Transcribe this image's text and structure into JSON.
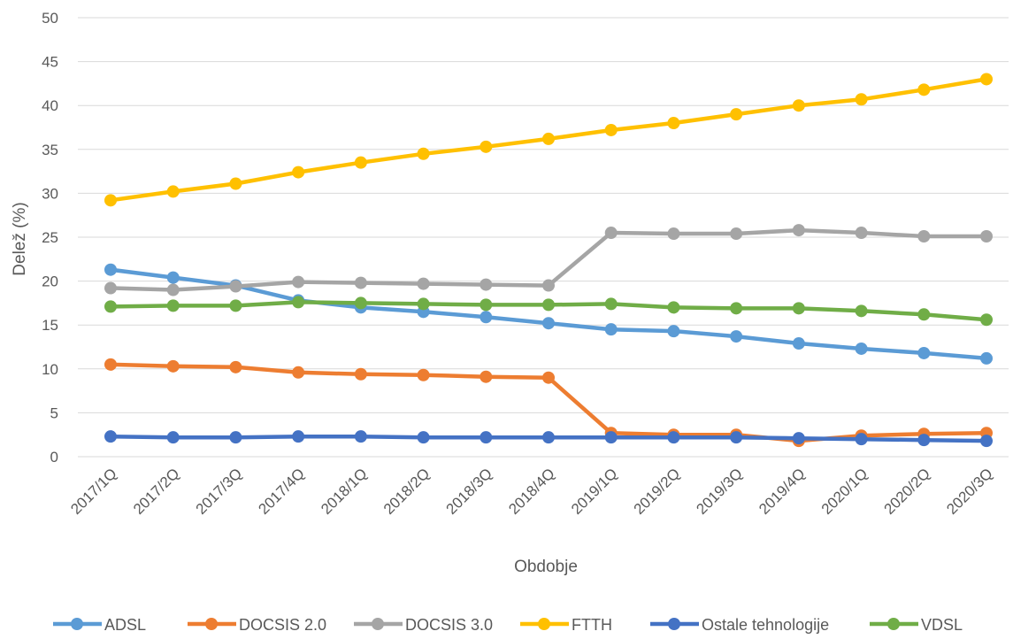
{
  "chart_data": {
    "type": "line",
    "title": "",
    "xlabel": "Obdobje",
    "ylabel": "Delež (%)",
    "ylim": [
      0,
      50
    ],
    "yticks": [
      "0",
      "5",
      "10",
      "15",
      "20",
      "25",
      "30",
      "35",
      "40",
      "45",
      "50"
    ],
    "grid": "horizontal",
    "legend_position": "bottom",
    "categories": [
      "2017/1Q",
      "2017/2Q",
      "2017/3Q",
      "2017/4Q",
      "2018/1Q",
      "2018/2Q",
      "2018/3Q",
      "2018/4Q",
      "2019/1Q",
      "2019/2Q",
      "2019/3Q",
      "2019/4Q",
      "2020/1Q",
      "2020/2Q",
      "2020/3Q"
    ],
    "series": [
      {
        "name": "ADSL",
        "color": "#5B9BD5",
        "values": [
          21.3,
          20.4,
          19.5,
          17.8,
          17.0,
          16.5,
          15.9,
          15.2,
          14.5,
          14.3,
          13.7,
          12.9,
          12.3,
          11.8,
          11.2
        ]
      },
      {
        "name": "DOCSIS 2.0",
        "color": "#ED7D31",
        "values": [
          10.5,
          10.3,
          10.2,
          9.6,
          9.4,
          9.3,
          9.1,
          9.0,
          2.7,
          2.5,
          2.5,
          1.8,
          2.4,
          2.6,
          2.7
        ]
      },
      {
        "name": "DOCSIS 3.0",
        "color": "#A5A5A5",
        "values": [
          19.2,
          19.0,
          19.4,
          19.9,
          19.8,
          19.7,
          19.6,
          19.5,
          25.5,
          25.4,
          25.4,
          25.8,
          25.5,
          25.1,
          25.1
        ]
      },
      {
        "name": "FTTH",
        "color": "#FFC000",
        "values": [
          29.2,
          30.2,
          31.1,
          32.4,
          33.5,
          34.5,
          35.3,
          36.2,
          37.2,
          38.0,
          39.0,
          40.0,
          40.7,
          41.8,
          43.0
        ]
      },
      {
        "name": "Ostale tehnologije",
        "color": "#4472C4",
        "values": [
          2.3,
          2.2,
          2.2,
          2.3,
          2.3,
          2.2,
          2.2,
          2.2,
          2.2,
          2.2,
          2.2,
          2.1,
          2.0,
          1.9,
          1.8
        ]
      },
      {
        "name": "VDSL",
        "color": "#70AD47",
        "values": [
          17.1,
          17.2,
          17.2,
          17.6,
          17.5,
          17.4,
          17.3,
          17.3,
          17.4,
          17.0,
          16.9,
          16.9,
          16.6,
          16.2,
          15.6
        ]
      }
    ]
  }
}
